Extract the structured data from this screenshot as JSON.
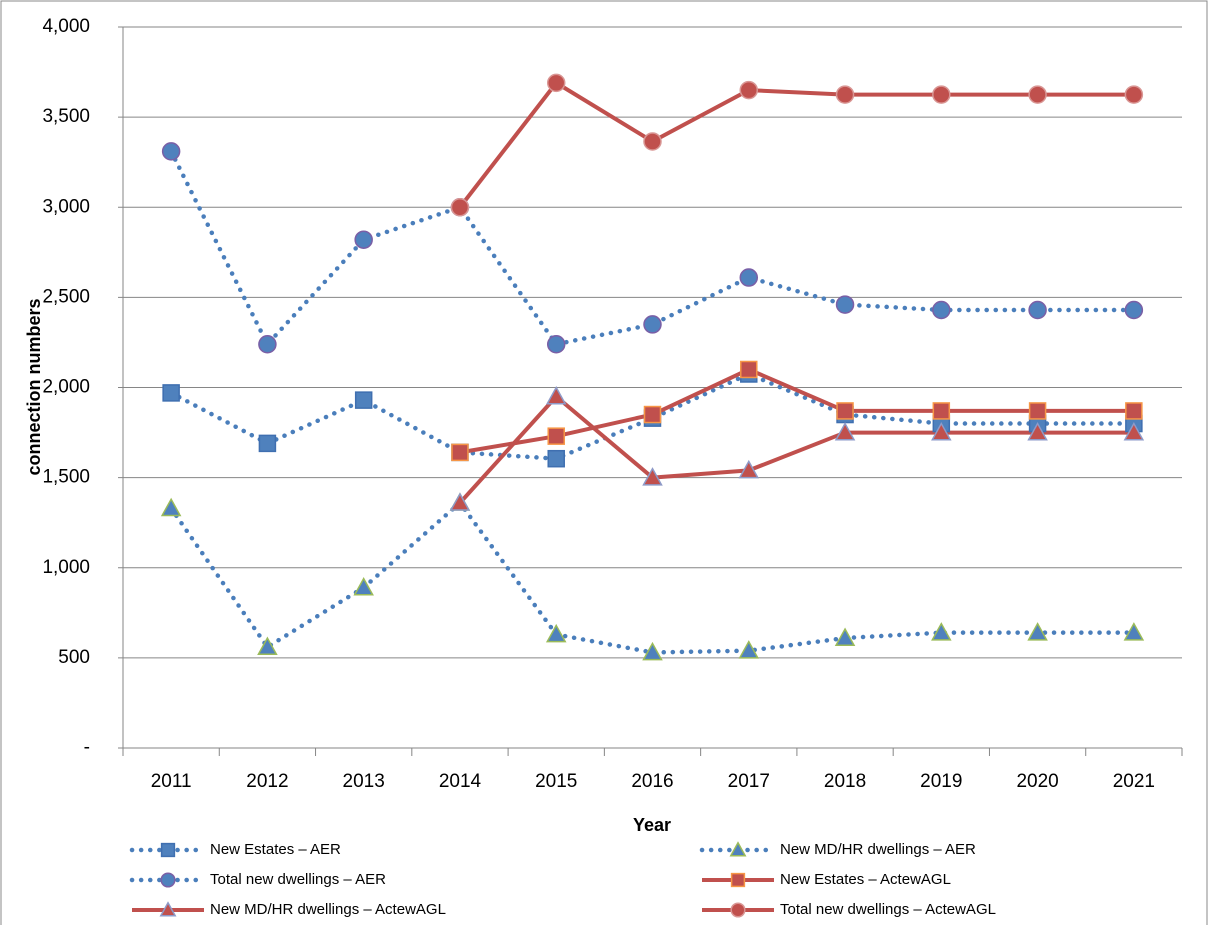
{
  "chart_data": {
    "type": "line",
    "x_label": "Year",
    "y_label": "connection numbers",
    "categories": [
      "2011",
      "2012",
      "2013",
      "2014",
      "2015",
      "2016",
      "2017",
      "2018",
      "2019",
      "2020",
      "2021"
    ],
    "ylim": [
      0,
      4000
    ],
    "yticks": [
      {
        "value": 0,
        "label": "-"
      },
      500,
      {
        "value": 1000,
        "label": "1,000"
      },
      {
        "value": 1500,
        "label": "1,500"
      },
      {
        "value": 2000,
        "label": "2,000"
      },
      {
        "value": 2500,
        "label": "2,500"
      },
      {
        "value": 3000,
        "label": "3,000"
      },
      {
        "value": 3500,
        "label": "3,500"
      },
      {
        "value": 4000,
        "label": "4,000"
      }
    ],
    "grid": true,
    "legend_position": "bottom",
    "series": [
      {
        "name": "New Estates – AER",
        "color": "#4a7ebb",
        "dash": "dotted",
        "marker": "square",
        "marker_fill": "#4f81bd",
        "marker_edge": "#3f6fb0",
        "values": [
          1970,
          1690,
          1930,
          1640,
          1605,
          1830,
          2075,
          1850,
          1800,
          1800,
          1800
        ]
      },
      {
        "name": "New MD/HR dwellings – AER",
        "color": "#4a7ebb",
        "dash": "dotted",
        "marker": "triangle",
        "marker_fill": "#4f81bd",
        "marker_edge": "#9bbb59",
        "values": [
          1330,
          560,
          890,
          1360,
          630,
          530,
          540,
          610,
          640,
          640,
          640
        ]
      },
      {
        "name": "Total new dwellings – AER",
        "color": "#4a7ebb",
        "dash": "dotted",
        "marker": "circle",
        "marker_fill": "#4f81bd",
        "marker_edge": "#7a5fa6",
        "values": [
          3310,
          2240,
          2820,
          3000,
          2240,
          2350,
          2610,
          2460,
          2430,
          2430,
          2430
        ]
      },
      {
        "name": "New Estates – ActewAGL",
        "color": "#c0504d",
        "dash": "solid",
        "marker": "square",
        "marker_fill": "#c0504d",
        "marker_edge": "#f79646",
        "values": [
          null,
          null,
          null,
          1640,
          1730,
          1850,
          2100,
          1870,
          1870,
          1870,
          1870
        ]
      },
      {
        "name": "New MD/HR dwellings – ActewAGL",
        "color": "#c0504d",
        "dash": "solid",
        "marker": "triangle",
        "marker_fill": "#c0504d",
        "marker_edge": "#8e9ac8",
        "values": [
          null,
          null,
          null,
          1360,
          1950,
          1500,
          1540,
          1750,
          1750,
          1750,
          1750
        ]
      },
      {
        "name": "Total new dwellings – ActewAGL",
        "color": "#c0504d",
        "dash": "solid",
        "marker": "circle",
        "marker_fill": "#c0504d",
        "marker_edge": "#d99694",
        "values": [
          null,
          null,
          null,
          3000,
          3690,
          3365,
          3650,
          3625,
          3625,
          3625,
          3625
        ]
      }
    ]
  }
}
